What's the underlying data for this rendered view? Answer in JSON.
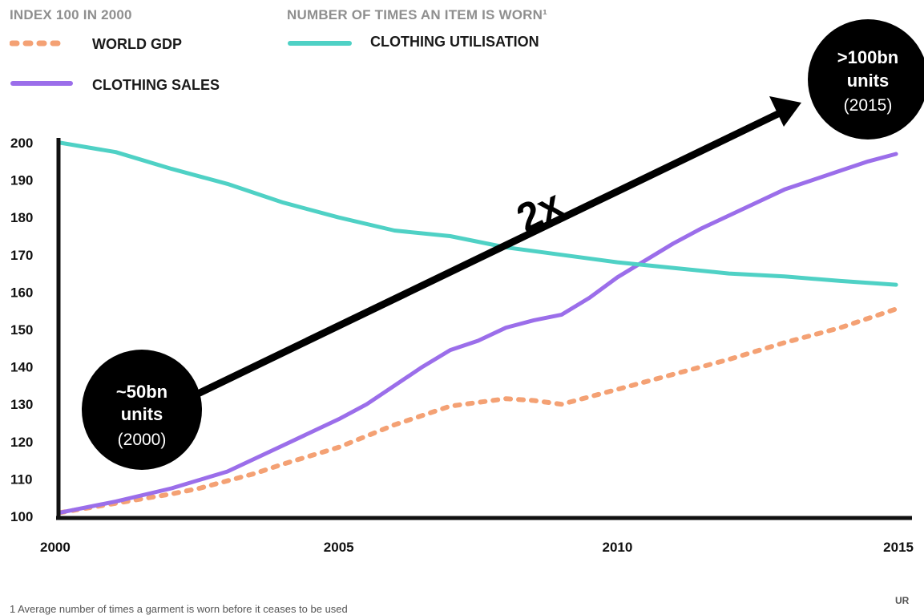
{
  "chart_data": {
    "type": "line",
    "header_left": "INDEX 100 IN 2000",
    "header_right": "NUMBER OF TIMES AN ITEM IS WORN¹",
    "x_ticks": [
      "2000",
      "2005",
      "2010",
      "2015"
    ],
    "y_ticks": [
      "200",
      "190",
      "180",
      "170",
      "160",
      "150",
      "140",
      "130",
      "120",
      "110",
      "100"
    ],
    "xlim": [
      2000,
      2015.2
    ],
    "ylim": [
      100,
      200
    ],
    "legend": {
      "placement": "top-left",
      "entries": [
        "WORLD GDP",
        "CLOTHING SALES",
        "CLOTHING UTILISATION"
      ]
    },
    "series": [
      {
        "name": "WORLD GDP",
        "color": "#f4a174",
        "style": "dashed",
        "x": [
          2000,
          2001,
          2002,
          2002.5,
          2003,
          2003.5,
          2004,
          2005,
          2005.5,
          2006,
          2006.5,
          2007,
          2007.5,
          2008,
          2008.5,
          2009,
          2009.5,
          2010,
          2011,
          2012,
          2013,
          2014,
          2015
        ],
        "y": [
          101,
          103.5,
          106,
          107.5,
          109.5,
          111.5,
          114,
          118.5,
          121.5,
          124.5,
          127,
          129.5,
          130.5,
          131.5,
          131,
          130,
          132,
          134,
          138,
          142,
          146.5,
          150.5,
          155.5
        ]
      },
      {
        "name": "CLOTHING SALES",
        "color": "#9b6eea",
        "style": "solid",
        "x": [
          2000,
          2001,
          2002,
          2003,
          2004,
          2005,
          2005.5,
          2006,
          2006.5,
          2007,
          2007.5,
          2008,
          2008.5,
          2009,
          2009.5,
          2010,
          2010.5,
          2011,
          2011.5,
          2012,
          2012.5,
          2013,
          2013.5,
          2014,
          2014.5,
          2015
        ],
        "y": [
          101,
          104,
          107.5,
          112,
          119,
          126,
          130,
          135,
          140,
          144.5,
          147,
          150.5,
          152.5,
          154,
          158.5,
          164,
          168.5,
          173,
          177,
          180.5,
          184,
          187.5,
          190,
          192.5,
          195,
          197
        ]
      },
      {
        "name": "CLOTHING UTILISATION",
        "color": "#4fd1c5",
        "style": "solid",
        "x": [
          2000,
          2001,
          2002,
          2003,
          2004,
          2005,
          2006,
          2007,
          2008,
          2009,
          2010,
          2011,
          2012,
          2013,
          2014,
          2015
        ],
        "y": [
          200,
          197.5,
          193,
          189,
          184,
          180,
          176.5,
          175,
          172,
          170,
          168,
          166.5,
          165,
          164.2,
          163,
          162
        ]
      }
    ],
    "annotations": [
      {
        "bold": "~50bn units",
        "normal": "(2000)"
      },
      {
        "bold": ">100bn units",
        "normal": "(2015)"
      },
      {
        "text": "2x"
      }
    ],
    "footnote": "1 Average number of times a garment is worn before it ceases to be used",
    "logo": "UR"
  },
  "colors": {
    "gdp": "#f4a174",
    "sales": "#9b6eea",
    "utilisation": "#4fd1c5",
    "header": "#8f8f8f",
    "axis": "#111111"
  }
}
